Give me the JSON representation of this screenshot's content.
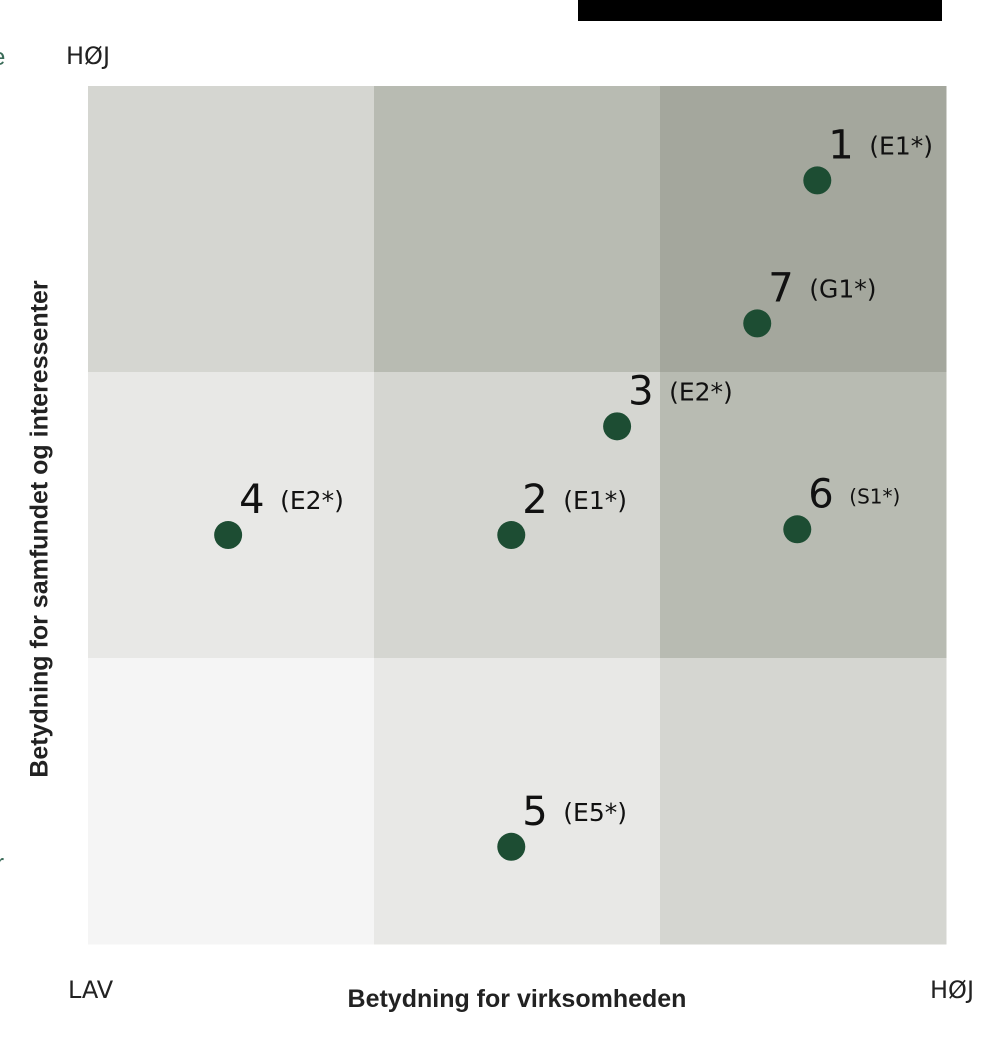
{
  "edge_fragments": {
    "left_top": "e",
    "left_bottom": "r"
  },
  "chart_data": {
    "type": "scatter",
    "title": "",
    "xlabel": "Betydning for virksomheden",
    "ylabel": "Betydning for samfundet og interessenter",
    "x_low_label": "LAV",
    "x_high_label": "HØJ",
    "y_high_label": "HØJ",
    "xlim": [
      0,
      3
    ],
    "ylim": [
      0,
      3
    ],
    "grid": "3x3",
    "cell_colors": [
      [
        "#d5d6d1",
        "#b8bbb2",
        "#a4a79d"
      ],
      [
        "#e8e8e6",
        "#d5d6d1",
        "#b8bbb2"
      ],
      [
        "#f5f5f5",
        "#e8e8e6",
        "#d5d6d1"
      ]
    ],
    "point_color": "#1d4d33",
    "points": [
      {
        "label": "1",
        "code": "(E1*)",
        "x": 2.55,
        "y": 2.67
      },
      {
        "label": "7",
        "code": "(G1*)",
        "x": 2.34,
        "y": 2.17
      },
      {
        "label": "3",
        "code": "(E2*)",
        "x": 1.85,
        "y": 1.81
      },
      {
        "label": "4",
        "code": "(E2*)",
        "x": 0.49,
        "y": 1.43
      },
      {
        "label": "2",
        "code": "(E1*)",
        "x": 1.48,
        "y": 1.43
      },
      {
        "label": "6",
        "code": "(S1*)",
        "x": 2.48,
        "y": 1.45
      },
      {
        "label": "5",
        "code": "(E5*)",
        "x": 1.48,
        "y": 0.34
      }
    ]
  }
}
